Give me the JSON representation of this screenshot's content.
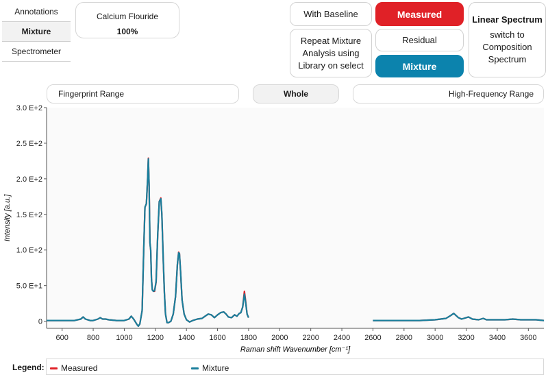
{
  "sidebar": {
    "tabs": [
      {
        "label": "Annotations",
        "active": false
      },
      {
        "label": "Mixture",
        "active": true
      },
      {
        "label": "Spectrometer",
        "active": false
      }
    ]
  },
  "component": {
    "name": "Calcium Flouride",
    "percent": "100%"
  },
  "buttons": {
    "with_baseline": "With Baseline",
    "measured": "Measured",
    "repeat_mixture": "Repeat Mixture Analysis using Library on select",
    "residual": "Residual",
    "mixture": "Mixture",
    "linear_bold": "Linear Spectrum",
    "linear_rest": "switch to Composition Spectrum"
  },
  "ranges": {
    "fingerprint": "Fingerprint Range",
    "whole": "Whole",
    "high_freq": "High-Frequency Range"
  },
  "colors": {
    "measured": "#e02127",
    "mixture": "#1a7f9c",
    "accent_blue": "#0c83ad"
  },
  "chart_data": {
    "type": "line",
    "xlabel": "Raman shift Wavenumber [cm⁻¹]",
    "ylabel": "Intensity [a.u.]",
    "xlim": [
      500,
      3700
    ],
    "ylim": [
      -10,
      300
    ],
    "x_ticks": [
      600,
      800,
      1000,
      1200,
      1400,
      1600,
      1800,
      2000,
      2200,
      2400,
      2600,
      2800,
      3000,
      3200,
      3400,
      3600
    ],
    "y_ticks": [
      {
        "value": 0,
        "label": "0"
      },
      {
        "value": 50,
        "label": "5.0 E+1"
      },
      {
        "value": 100,
        "label": "1.0 E+2"
      },
      {
        "value": 150,
        "label": "1.5 E+2"
      },
      {
        "value": 200,
        "label": "2.0 E+2"
      },
      {
        "value": 250,
        "label": "2.5 E+2"
      },
      {
        "value": 300,
        "label": "3.0 E+2"
      }
    ],
    "legend": {
      "title": "Legend:",
      "placement": "bottom"
    },
    "series": [
      {
        "name": "Measured",
        "color": "#e02127",
        "segments": [
          [
            [
              500,
              1
            ],
            [
              600,
              1
            ],
            [
              680,
              1
            ],
            [
              720,
              3
            ],
            [
              735,
              6
            ],
            [
              750,
              3
            ],
            [
              780,
              1
            ],
            [
              800,
              1
            ],
            [
              830,
              3
            ],
            [
              845,
              5
            ],
            [
              860,
              3
            ],
            [
              880,
              3
            ],
            [
              900,
              2
            ],
            [
              950,
              1
            ],
            [
              1000,
              1
            ],
            [
              1030,
              3
            ],
            [
              1045,
              7
            ],
            [
              1060,
              3
            ],
            [
              1080,
              -4
            ],
            [
              1090,
              -7
            ],
            [
              1100,
              -4
            ],
            [
              1115,
              15
            ],
            [
              1125,
              100
            ],
            [
              1133,
              160
            ],
            [
              1142,
              165
            ],
            [
              1150,
              200
            ],
            [
              1155,
              229
            ],
            [
              1160,
              190
            ],
            [
              1165,
              110
            ],
            [
              1170,
              100
            ],
            [
              1175,
              60
            ],
            [
              1180,
              45
            ],
            [
              1187,
              42
            ],
            [
              1195,
              42
            ],
            [
              1205,
              55
            ],
            [
              1215,
              120
            ],
            [
              1225,
              168
            ],
            [
              1235,
              173
            ],
            [
              1242,
              150
            ],
            [
              1250,
              90
            ],
            [
              1258,
              40
            ],
            [
              1265,
              10
            ],
            [
              1275,
              -2
            ],
            [
              1285,
              -2
            ],
            [
              1300,
              0
            ],
            [
              1315,
              10
            ],
            [
              1330,
              35
            ],
            [
              1342,
              80
            ],
            [
              1350,
              97
            ],
            [
              1355,
              95
            ],
            [
              1362,
              70
            ],
            [
              1372,
              30
            ],
            [
              1385,
              10
            ],
            [
              1400,
              2
            ],
            [
              1420,
              -1
            ],
            [
              1440,
              1
            ],
            [
              1470,
              3
            ],
            [
              1500,
              4
            ],
            [
              1520,
              7
            ],
            [
              1540,
              10
            ],
            [
              1560,
              9
            ],
            [
              1580,
              5
            ],
            [
              1600,
              9
            ],
            [
              1620,
              12
            ],
            [
              1640,
              13
            ],
            [
              1655,
              10
            ],
            [
              1670,
              6
            ],
            [
              1690,
              5
            ],
            [
              1710,
              9
            ],
            [
              1725,
              7
            ],
            [
              1740,
              11
            ],
            [
              1750,
              12
            ],
            [
              1762,
              20
            ],
            [
              1773,
              42
            ],
            [
              1780,
              30
            ],
            [
              1790,
              10
            ],
            [
              1800,
              5
            ]
          ],
          [
            [
              2600,
              1
            ],
            [
              2800,
              1
            ],
            [
              2900,
              1
            ],
            [
              3000,
              2
            ],
            [
              3070,
              4
            ],
            [
              3100,
              8
            ],
            [
              3120,
              11
            ],
            [
              3130,
              9
            ],
            [
              3150,
              5
            ],
            [
              3170,
              3
            ],
            [
              3200,
              5
            ],
            [
              3215,
              6
            ],
            [
              3240,
              3
            ],
            [
              3280,
              2
            ],
            [
              3310,
              4
            ],
            [
              3330,
              2
            ],
            [
              3400,
              2
            ],
            [
              3450,
              2
            ],
            [
              3500,
              3
            ],
            [
              3550,
              2
            ],
            [
              3600,
              2
            ],
            [
              3650,
              2
            ],
            [
              3700,
              1
            ]
          ]
        ]
      },
      {
        "name": "Mixture",
        "color": "#1a7f9c",
        "segments": [
          [
            [
              500,
              1
            ],
            [
              600,
              1
            ],
            [
              680,
              1
            ],
            [
              720,
              3
            ],
            [
              735,
              6
            ],
            [
              750,
              3
            ],
            [
              780,
              1
            ],
            [
              800,
              1
            ],
            [
              830,
              3
            ],
            [
              845,
              5
            ],
            [
              860,
              3
            ],
            [
              880,
              3
            ],
            [
              900,
              2
            ],
            [
              950,
              1
            ],
            [
              1000,
              1
            ],
            [
              1030,
              3
            ],
            [
              1045,
              7
            ],
            [
              1060,
              3
            ],
            [
              1080,
              -4
            ],
            [
              1090,
              -7
            ],
            [
              1100,
              -4
            ],
            [
              1115,
              15
            ],
            [
              1125,
              100
            ],
            [
              1133,
              160
            ],
            [
              1142,
              165
            ],
            [
              1150,
              200
            ],
            [
              1155,
              228
            ],
            [
              1160,
              190
            ],
            [
              1165,
              110
            ],
            [
              1170,
              100
            ],
            [
              1175,
              60
            ],
            [
              1180,
              44
            ],
            [
              1187,
              42
            ],
            [
              1195,
              43
            ],
            [
              1205,
              56
            ],
            [
              1215,
              121
            ],
            [
              1225,
              168
            ],
            [
              1235,
              172
            ],
            [
              1242,
              150
            ],
            [
              1250,
              90
            ],
            [
              1258,
              40
            ],
            [
              1265,
              10
            ],
            [
              1275,
              -2
            ],
            [
              1285,
              -2
            ],
            [
              1300,
              0
            ],
            [
              1315,
              10
            ],
            [
              1330,
              35
            ],
            [
              1342,
              80
            ],
            [
              1350,
              96
            ],
            [
              1355,
              95
            ],
            [
              1362,
              70
            ],
            [
              1372,
              30
            ],
            [
              1385,
              10
            ],
            [
              1400,
              2
            ],
            [
              1420,
              -1
            ],
            [
              1440,
              1
            ],
            [
              1470,
              3
            ],
            [
              1500,
              4
            ],
            [
              1520,
              7
            ],
            [
              1540,
              10
            ],
            [
              1560,
              9
            ],
            [
              1580,
              5
            ],
            [
              1600,
              9
            ],
            [
              1620,
              12
            ],
            [
              1640,
              13
            ],
            [
              1655,
              10
            ],
            [
              1670,
              6
            ],
            [
              1690,
              5
            ],
            [
              1710,
              9
            ],
            [
              1725,
              7
            ],
            [
              1740,
              11
            ],
            [
              1750,
              12
            ],
            [
              1762,
              20
            ],
            [
              1773,
              38
            ],
            [
              1780,
              28
            ],
            [
              1790,
              10
            ],
            [
              1800,
              5
            ]
          ],
          [
            [
              2600,
              1
            ],
            [
              2800,
              1
            ],
            [
              2900,
              1
            ],
            [
              3000,
              2
            ],
            [
              3070,
              4
            ],
            [
              3100,
              8
            ],
            [
              3120,
              11
            ],
            [
              3130,
              9
            ],
            [
              3150,
              5
            ],
            [
              3170,
              3
            ],
            [
              3200,
              5
            ],
            [
              3215,
              6
            ],
            [
              3240,
              3
            ],
            [
              3280,
              2
            ],
            [
              3310,
              4
            ],
            [
              3330,
              2
            ],
            [
              3400,
              2
            ],
            [
              3450,
              2
            ],
            [
              3500,
              3
            ],
            [
              3550,
              2
            ],
            [
              3600,
              2
            ],
            [
              3650,
              2
            ],
            [
              3700,
              1
            ]
          ]
        ]
      }
    ]
  }
}
